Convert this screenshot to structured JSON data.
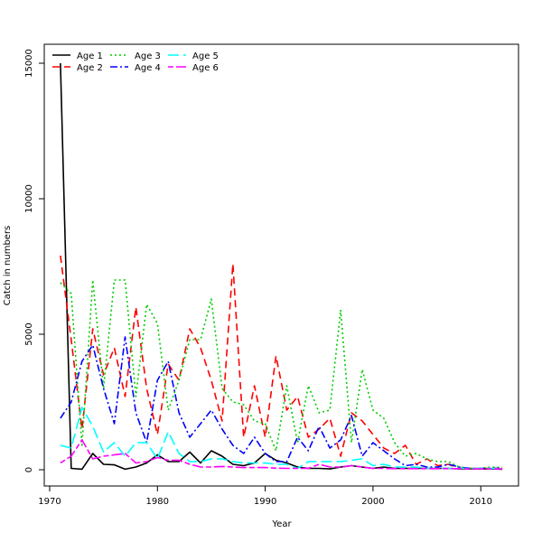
{
  "chart_data": {
    "type": "line",
    "title": "",
    "xlabel": "Year",
    "ylabel": "Catch in numbers",
    "xlim": [
      1969.5,
      2013.5
    ],
    "ylim": [
      -600,
      15700
    ],
    "x_ticks": [
      1970,
      1980,
      1990,
      2000,
      2010
    ],
    "y_ticks": [
      0,
      5000,
      10000,
      15000
    ],
    "grid": false,
    "legend": {
      "position": "top-left",
      "columns": 3
    },
    "x": [
      1971,
      1972,
      1973,
      1974,
      1975,
      1976,
      1977,
      1978,
      1979,
      1980,
      1981,
      1982,
      1983,
      1984,
      1985,
      1986,
      1987,
      1988,
      1989,
      1990,
      1991,
      1992,
      1993,
      1994,
      1995,
      1996,
      1997,
      1998,
      1999,
      2000,
      2001,
      2002,
      2003,
      2004,
      2005,
      2006,
      2007,
      2008,
      2009,
      2010,
      2011,
      2012
    ],
    "series": [
      {
        "name": "Age 1",
        "color": "#000000",
        "dash": "solid",
        "values": [
          15000,
          50,
          20,
          600,
          200,
          180,
          20,
          100,
          250,
          550,
          300,
          300,
          650,
          250,
          700,
          500,
          200,
          150,
          250,
          600,
          350,
          250,
          100,
          50,
          50,
          30,
          100,
          150,
          100,
          50,
          100,
          50,
          50,
          50,
          50,
          50,
          50,
          30,
          30,
          30,
          30,
          20
        ]
      },
      {
        "name": "Age 2",
        "color": "#ff0000",
        "dash": "dashed",
        "values": [
          7900,
          4800,
          1500,
          5200,
          3500,
          4500,
          2700,
          6000,
          3000,
          1300,
          3900,
          3300,
          5200,
          4500,
          3300,
          1800,
          7600,
          1200,
          3100,
          1200,
          4200,
          2200,
          2700,
          1200,
          1500,
          1900,
          500,
          2100,
          1800,
          1300,
          800,
          600,
          900,
          200,
          400,
          150,
          200,
          50,
          50,
          50,
          50,
          50
        ]
      },
      {
        "name": "Age 3",
        "color": "#00cc00",
        "dash": "dotted",
        "values": [
          6900,
          6500,
          900,
          7000,
          3000,
          7000,
          7000,
          2700,
          6100,
          5400,
          2200,
          3300,
          4800,
          4800,
          6300,
          3000,
          2500,
          2400,
          1800,
          1700,
          700,
          3100,
          1000,
          3100,
          2100,
          2200,
          5900,
          1000,
          3700,
          2200,
          1900,
          1000,
          500,
          600,
          400,
          300,
          300,
          100,
          50,
          50,
          100,
          80
        ]
      },
      {
        "name": "Age 4",
        "color": "#0000ff",
        "dash": "dashdot",
        "values": [
          1900,
          2500,
          4000,
          4600,
          3000,
          1700,
          4900,
          2100,
          1000,
          3300,
          4000,
          2100,
          1200,
          1700,
          2200,
          1500,
          900,
          600,
          1200,
          600,
          300,
          300,
          1200,
          700,
          1600,
          800,
          1100,
          2000,
          500,
          1000,
          700,
          400,
          150,
          200,
          100,
          100,
          200,
          100,
          50,
          50,
          50,
          50
        ]
      },
      {
        "name": "Age 5",
        "color": "#00ffff",
        "dash": "longdash",
        "values": [
          900,
          800,
          2300,
          1600,
          650,
          1000,
          500,
          1000,
          1000,
          400,
          1400,
          600,
          300,
          300,
          400,
          400,
          300,
          250,
          250,
          250,
          200,
          200,
          50,
          300,
          300,
          300,
          300,
          350,
          400,
          150,
          200,
          100,
          100,
          100,
          50,
          50,
          50,
          50,
          50,
          50,
          50,
          30
        ]
      },
      {
        "name": "Age 6",
        "color": "#ff00ff",
        "dash": "twodash",
        "values": [
          250,
          500,
          1100,
          400,
          500,
          550,
          600,
          250,
          300,
          450,
          350,
          350,
          200,
          100,
          100,
          120,
          100,
          80,
          80,
          80,
          60,
          50,
          50,
          50,
          200,
          100,
          100,
          150,
          100,
          50,
          50,
          40,
          40,
          40,
          40,
          40,
          40,
          40,
          30,
          30,
          30,
          30
        ]
      }
    ]
  }
}
